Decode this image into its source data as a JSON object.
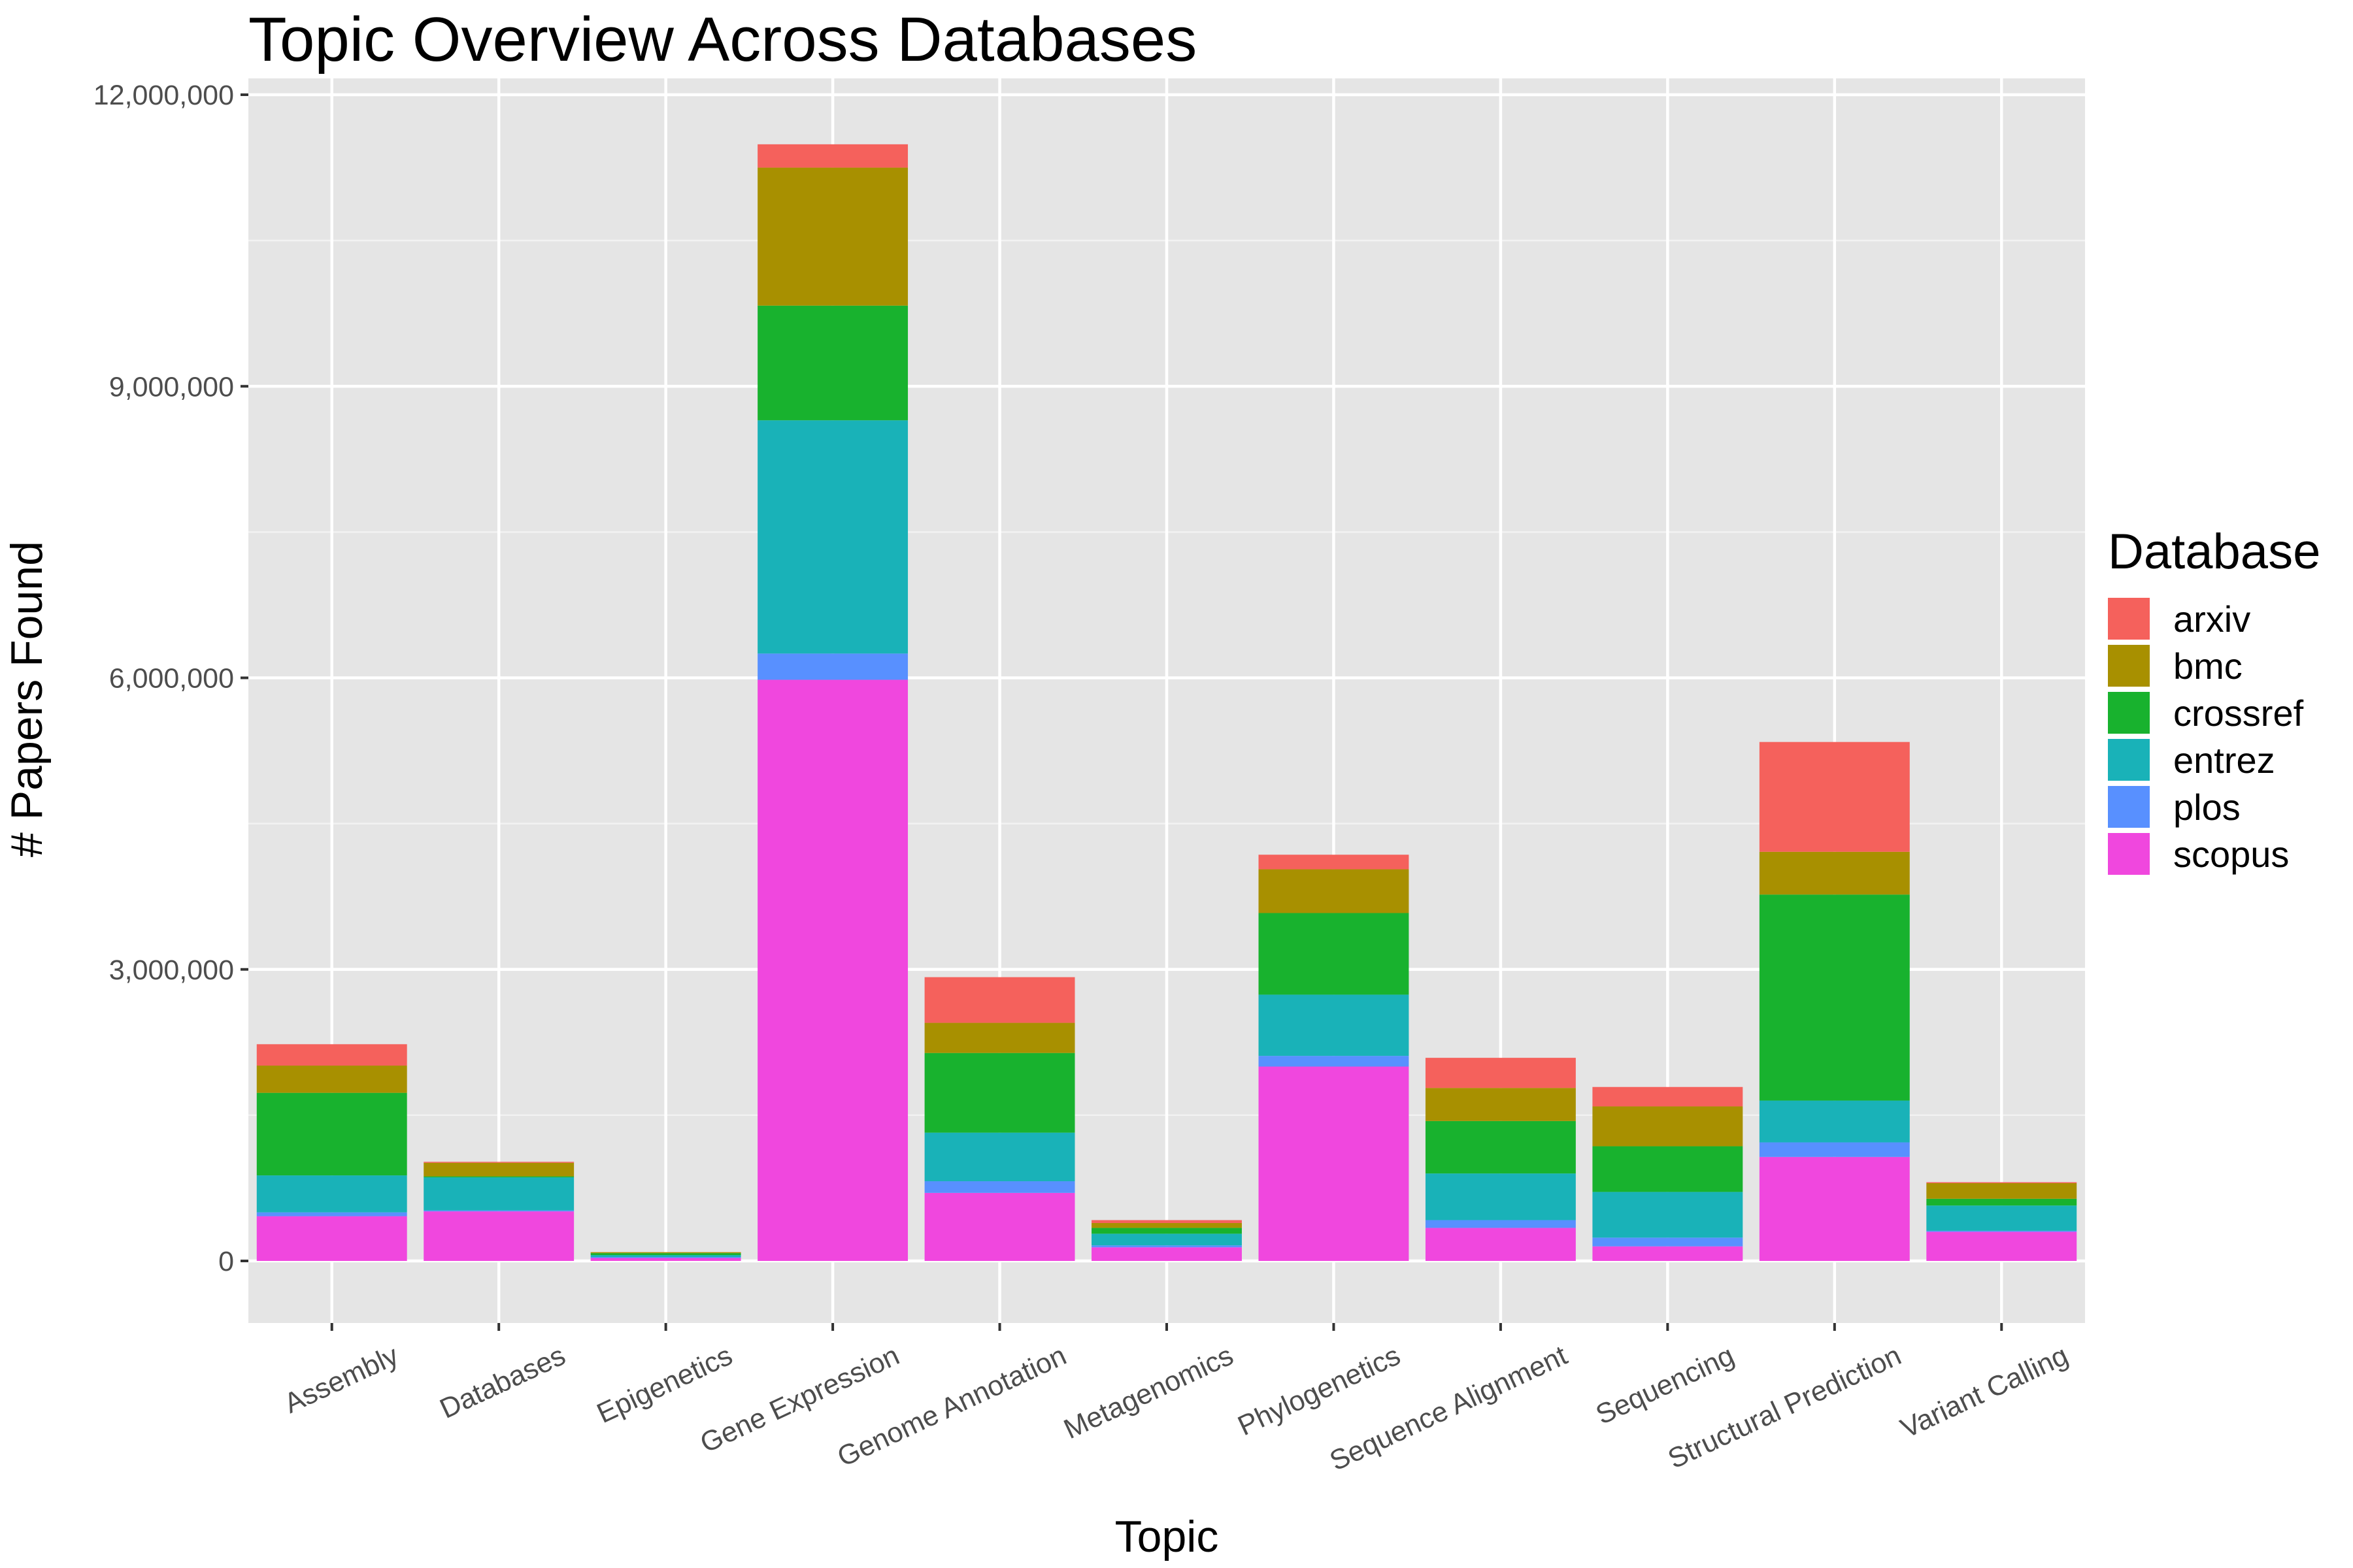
{
  "chart_data": {
    "type": "bar",
    "stacked": true,
    "title": "Topic Overview Across Databases",
    "xlabel": "Topic",
    "ylabel": "# Papers Found",
    "ylim": [
      -560000,
      12000000
    ],
    "yticks": [
      0,
      3000000,
      6000000,
      9000000,
      12000000
    ],
    "ytick_labels": [
      "0",
      "3,000,000",
      "6,000,000",
      "9,000,000",
      "12,000,000"
    ],
    "grid": true,
    "legend": {
      "title": "Database",
      "placement": "right"
    },
    "categories": [
      "Assembly",
      "Databases",
      "Epigenetics",
      "Gene Expression",
      "Genome Annotation",
      "Metagenomics",
      "Phylogenetics",
      "Sequence Alignment",
      "Sequencing",
      "Structural Prediction",
      "Variant Calling"
    ],
    "series": [
      {
        "name": "scopus",
        "color": "#F047DE",
        "values": [
          460000,
          510000,
          30000,
          5980000,
          700000,
          140000,
          2000000,
          340000,
          150000,
          1070000,
          300000
        ]
      },
      {
        "name": "plos",
        "color": "#5890FF",
        "values": [
          40000,
          10000,
          10000,
          270000,
          120000,
          20000,
          110000,
          80000,
          90000,
          150000,
          10000
        ]
      },
      {
        "name": "entrez",
        "color": "#19B2B8",
        "values": [
          380000,
          340000,
          20000,
          2400000,
          500000,
          120000,
          630000,
          480000,
          470000,
          430000,
          260000
        ]
      },
      {
        "name": "crossref",
        "color": "#18B22E",
        "values": [
          850000,
          10000,
          20000,
          1180000,
          820000,
          60000,
          840000,
          540000,
          470000,
          2120000,
          70000
        ]
      },
      {
        "name": "bmc",
        "color": "#A89000",
        "values": [
          280000,
          140000,
          10000,
          1420000,
          310000,
          50000,
          450000,
          340000,
          410000,
          440000,
          160000
        ]
      },
      {
        "name": "arxiv",
        "color": "#F5615C",
        "values": [
          220000,
          10000,
          0,
          240000,
          470000,
          30000,
          150000,
          310000,
          200000,
          1130000,
          10000
        ]
      }
    ]
  }
}
